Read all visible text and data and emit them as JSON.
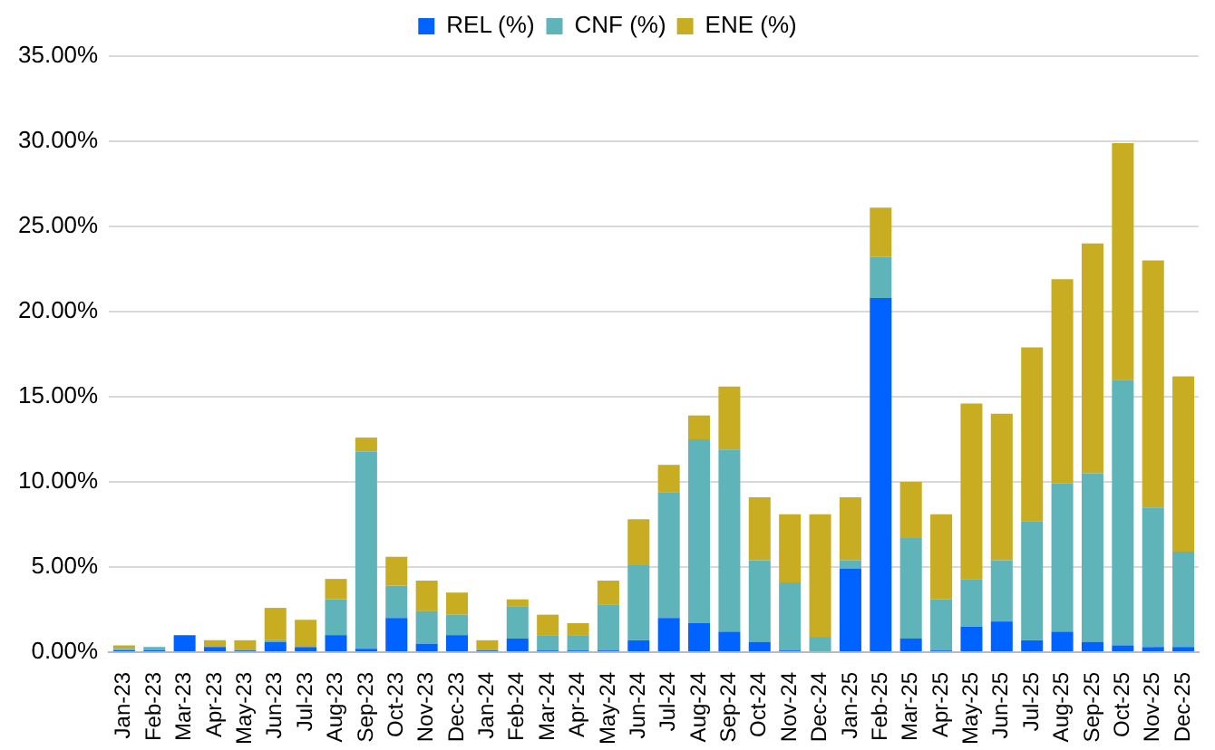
{
  "chart_data": {
    "type": "bar",
    "stacked": true,
    "legend": "top",
    "grid": "y",
    "categories": [
      "Jan-23",
      "Feb-23",
      "Mar-23",
      "Apr-23",
      "May-23",
      "Jun-23",
      "Jul-23",
      "Aug-23",
      "Sep-23",
      "Oct-23",
      "Nov-23",
      "Dec-23",
      "Jan-24",
      "Feb-24",
      "Mar-24",
      "Apr-24",
      "May-24",
      "Jun-24",
      "Jul-24",
      "Aug-24",
      "Sep-24",
      "Oct-24",
      "Nov-24",
      "Dec-24",
      "Jan-25",
      "Feb-25",
      "Mar-25",
      "Apr-25",
      "May-25",
      "Jun-25",
      "Jul-25",
      "Aug-25",
      "Sep-25",
      "Oct-25",
      "Nov-25",
      "Dec-25"
    ],
    "series": [
      {
        "name": "REL (%)",
        "color": "#0062ff",
        "values": [
          0.1,
          0.1,
          1.0,
          0.3,
          0.1,
          0.6,
          0.3,
          1.0,
          0.2,
          2.0,
          0.5,
          1.0,
          0.1,
          0.8,
          0.1,
          0.1,
          0.1,
          0.7,
          2.0,
          1.7,
          1.2,
          0.6,
          0.1,
          0,
          4.9,
          20.8,
          0.8,
          0.1,
          1.5,
          1.8,
          0.7,
          1.2,
          0.6,
          0.4,
          0.3,
          0.3
        ]
      },
      {
        "name": "CNF (%)",
        "color": "#5fb4ba",
        "values": [
          0.1,
          0.2,
          0,
          0,
          0,
          0.1,
          0,
          2.1,
          11.6,
          1.9,
          1.9,
          1.2,
          0,
          1.9,
          0.9,
          0.9,
          2.7,
          4.4,
          7.4,
          10.8,
          10.7,
          4.8,
          4.0,
          0.9,
          0.5,
          2.4,
          5.9,
          3.0,
          2.8,
          3.6,
          7.0,
          8.7,
          9.9,
          15.6,
          8.2,
          5.6
        ]
      },
      {
        "name": "ENE (%)",
        "color": "#c8ad22",
        "values": [
          0.2,
          0,
          0,
          0.4,
          0.6,
          1.9,
          1.6,
          1.2,
          0.8,
          1.7,
          1.8,
          1.3,
          0.6,
          0.4,
          1.2,
          0.7,
          1.4,
          2.7,
          1.6,
          1.4,
          3.7,
          3.7,
          4.0,
          7.2,
          3.7,
          2.9,
          3.3,
          5.0,
          10.3,
          8.6,
          10.2,
          12.0,
          13.5,
          13.9,
          14.5,
          10.3
        ]
      }
    ],
    "ylim": [
      0,
      35
    ],
    "yticks": [
      {
        "value": 0,
        "label": "0.00%"
      },
      {
        "value": 5,
        "label": "5.00%"
      },
      {
        "value": 10,
        "label": "10.00%"
      },
      {
        "value": 15,
        "label": "15.00%"
      },
      {
        "value": 20,
        "label": "20.00%"
      },
      {
        "value": 25,
        "label": "25.00%"
      },
      {
        "value": 30,
        "label": "30.00%"
      },
      {
        "value": 35,
        "label": "35.00%"
      }
    ]
  }
}
